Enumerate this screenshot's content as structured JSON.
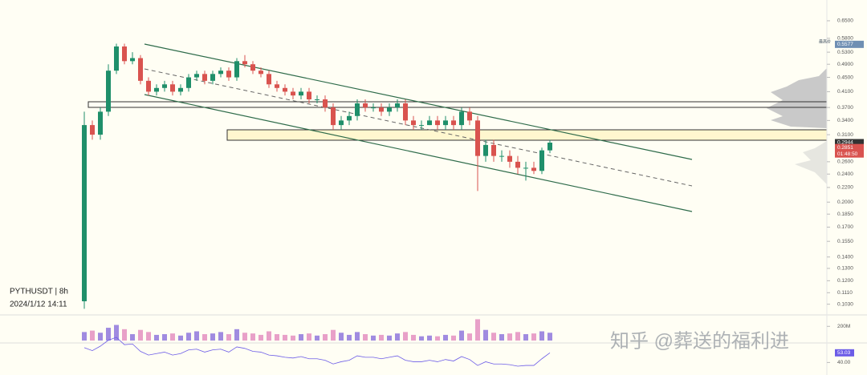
{
  "chart_data": {
    "type": "candlestick",
    "title": "PYTHUSDT | 8h",
    "subtitle": "2024/1/12 14:11",
    "watermark": "知乎 @葬送的福利进",
    "log_scale": true,
    "ylim": [
      0.0976,
      0.744
    ],
    "yticks": [
      {
        "value": 0.65,
        "label": "0.6500"
      },
      {
        "value": 0.58,
        "label": "0.5800"
      },
      {
        "value": 0.53,
        "label": "0.5300"
      },
      {
        "value": 0.49,
        "label": "0.4900"
      },
      {
        "value": 0.45,
        "label": "0.4500"
      },
      {
        "value": 0.41,
        "label": "0.4100"
      },
      {
        "value": 0.37,
        "label": "0.3700"
      },
      {
        "value": 0.34,
        "label": "0.3400"
      },
      {
        "value": 0.31,
        "label": "0.3100"
      },
      {
        "value": 0.26,
        "label": "0.2600"
      },
      {
        "value": 0.24,
        "label": "0.2400"
      },
      {
        "value": 0.22,
        "label": "0.2200"
      },
      {
        "value": 0.2,
        "label": "0.2000"
      },
      {
        "value": 0.185,
        "label": "0.1850"
      },
      {
        "value": 0.17,
        "label": "0.1700"
      },
      {
        "value": 0.155,
        "label": "0.1550"
      },
      {
        "value": 0.14,
        "label": "0.1400"
      },
      {
        "value": 0.13,
        "label": "0.1300"
      },
      {
        "value": 0.12,
        "label": "0.1200"
      },
      {
        "value": 0.111,
        "label": "0.1110"
      },
      {
        "value": 0.103,
        "label": "0.1030"
      }
    ],
    "high_tag": {
      "label": "最高价",
      "value": 0.5577
    },
    "last_price": 0.2944,
    "mark_price": 0.2851,
    "countdown": "01:48:50",
    "up_color": "#1f8f6a",
    "down_color": "#d9534f",
    "open": [
      0.105,
      0.33,
      0.31,
      0.36,
      0.47,
      0.55,
      0.5,
      0.51,
      0.44,
      0.41,
      0.42,
      0.43,
      0.41,
      0.42,
      0.45,
      0.46,
      0.44,
      0.46,
      0.47,
      0.45,
      0.5,
      0.49,
      0.47,
      0.46,
      0.43,
      0.42,
      0.41,
      0.4,
      0.41,
      0.39,
      0.39,
      0.37,
      0.33,
      0.34,
      0.35,
      0.38,
      0.37,
      0.37,
      0.36,
      0.37,
      0.38,
      0.34,
      0.33,
      0.33,
      0.34,
      0.33,
      0.34,
      0.33,
      0.36,
      0.34,
      0.27,
      0.29,
      0.27,
      0.27,
      0.26,
      0.25,
      0.25,
      0.245,
      0.28
    ],
    "high": [
      0.36,
      0.34,
      0.37,
      0.49,
      0.56,
      0.56,
      0.53,
      0.52,
      0.45,
      0.43,
      0.44,
      0.44,
      0.43,
      0.46,
      0.47,
      0.47,
      0.47,
      0.48,
      0.48,
      0.51,
      0.52,
      0.5,
      0.48,
      0.47,
      0.44,
      0.43,
      0.42,
      0.42,
      0.42,
      0.4,
      0.4,
      0.38,
      0.35,
      0.36,
      0.39,
      0.39,
      0.38,
      0.38,
      0.38,
      0.39,
      0.39,
      0.35,
      0.34,
      0.35,
      0.35,
      0.35,
      0.35,
      0.37,
      0.37,
      0.35,
      0.3,
      0.3,
      0.28,
      0.28,
      0.27,
      0.26,
      0.26,
      0.285,
      0.3
    ],
    "low": [
      0.1,
      0.3,
      0.3,
      0.35,
      0.46,
      0.49,
      0.49,
      0.43,
      0.4,
      0.4,
      0.41,
      0.4,
      0.4,
      0.41,
      0.44,
      0.43,
      0.43,
      0.45,
      0.44,
      0.44,
      0.48,
      0.46,
      0.45,
      0.42,
      0.41,
      0.4,
      0.39,
      0.39,
      0.38,
      0.38,
      0.36,
      0.32,
      0.32,
      0.33,
      0.34,
      0.36,
      0.36,
      0.35,
      0.35,
      0.36,
      0.33,
      0.32,
      0.32,
      0.33,
      0.32,
      0.32,
      0.32,
      0.32,
      0.33,
      0.215,
      0.26,
      0.26,
      0.26,
      0.25,
      0.24,
      0.23,
      0.24,
      0.24,
      0.275
    ],
    "close": [
      0.33,
      0.31,
      0.36,
      0.47,
      0.55,
      0.5,
      0.51,
      0.44,
      0.41,
      0.42,
      0.43,
      0.41,
      0.42,
      0.45,
      0.46,
      0.44,
      0.46,
      0.47,
      0.45,
      0.5,
      0.49,
      0.47,
      0.46,
      0.43,
      0.42,
      0.41,
      0.4,
      0.41,
      0.39,
      0.39,
      0.37,
      0.33,
      0.34,
      0.35,
      0.38,
      0.37,
      0.37,
      0.36,
      0.37,
      0.38,
      0.34,
      0.33,
      0.33,
      0.34,
      0.33,
      0.34,
      0.33,
      0.36,
      0.34,
      0.27,
      0.29,
      0.27,
      0.27,
      0.26,
      0.25,
      0.25,
      0.245,
      0.28,
      0.2944
    ],
    "volume": {
      "ylim": [
        0,
        350
      ],
      "yticks": [
        {
          "value": 200,
          "label": "200M"
        }
      ],
      "values": [
        120,
        140,
        110,
        180,
        220,
        160,
        90,
        150,
        120,
        80,
        90,
        100,
        70,
        110,
        130,
        90,
        100,
        120,
        90,
        160,
        110,
        100,
        80,
        130,
        90,
        80,
        70,
        90,
        100,
        70,
        90,
        150,
        110,
        80,
        120,
        90,
        70,
        80,
        70,
        100,
        120,
        80,
        60,
        70,
        60,
        80,
        70,
        140,
        100,
        300,
        150,
        110,
        90,
        100,
        120,
        90,
        100,
        130,
        110
      ]
    },
    "rsi": {
      "ylim": [
        35,
        75
      ],
      "yticks": [
        {
          "value": 40,
          "label": "40.00"
        }
      ],
      "last": 53.03,
      "color": "#6c5ce7",
      "values": [
        60,
        56,
        62,
        70,
        74,
        64,
        65,
        55,
        50,
        52,
        54,
        50,
        52,
        57,
        58,
        54,
        57,
        58,
        54,
        61,
        59,
        55,
        54,
        50,
        49,
        47,
        46,
        48,
        45,
        45,
        43,
        38,
        41,
        43,
        49,
        47,
        47,
        45,
        47,
        49,
        43,
        41,
        41,
        43,
        41,
        44,
        42,
        48,
        44,
        36,
        41,
        38,
        38,
        37,
        35,
        36,
        36,
        45,
        53.03
      ]
    }
  }
}
